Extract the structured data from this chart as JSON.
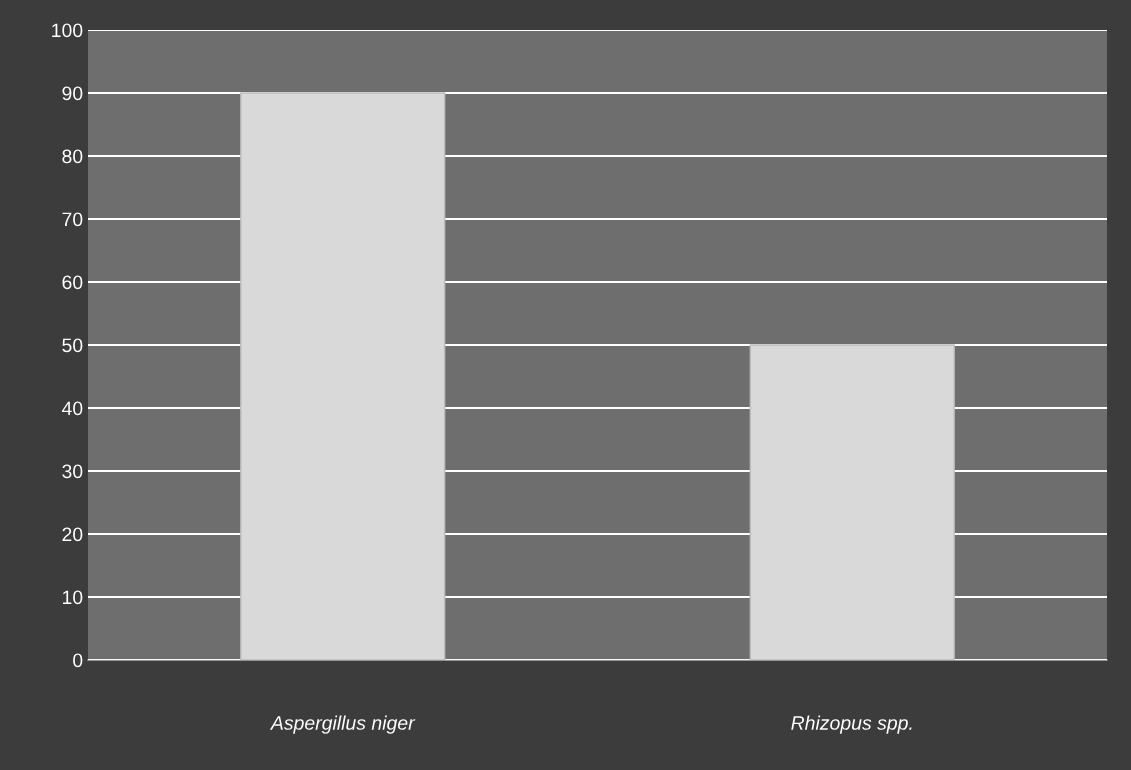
{
  "chart_data": {
    "type": "bar",
    "categories": [
      "Aspergillus niger",
      "Rhizopus spp."
    ],
    "values": [
      90,
      50
    ],
    "color": "#d9d9d9",
    "ylim": [
      0,
      100
    ],
    "yticks": [
      0,
      10,
      20,
      30,
      40,
      50,
      60,
      70,
      80,
      90,
      100
    ],
    "grid": "y"
  }
}
